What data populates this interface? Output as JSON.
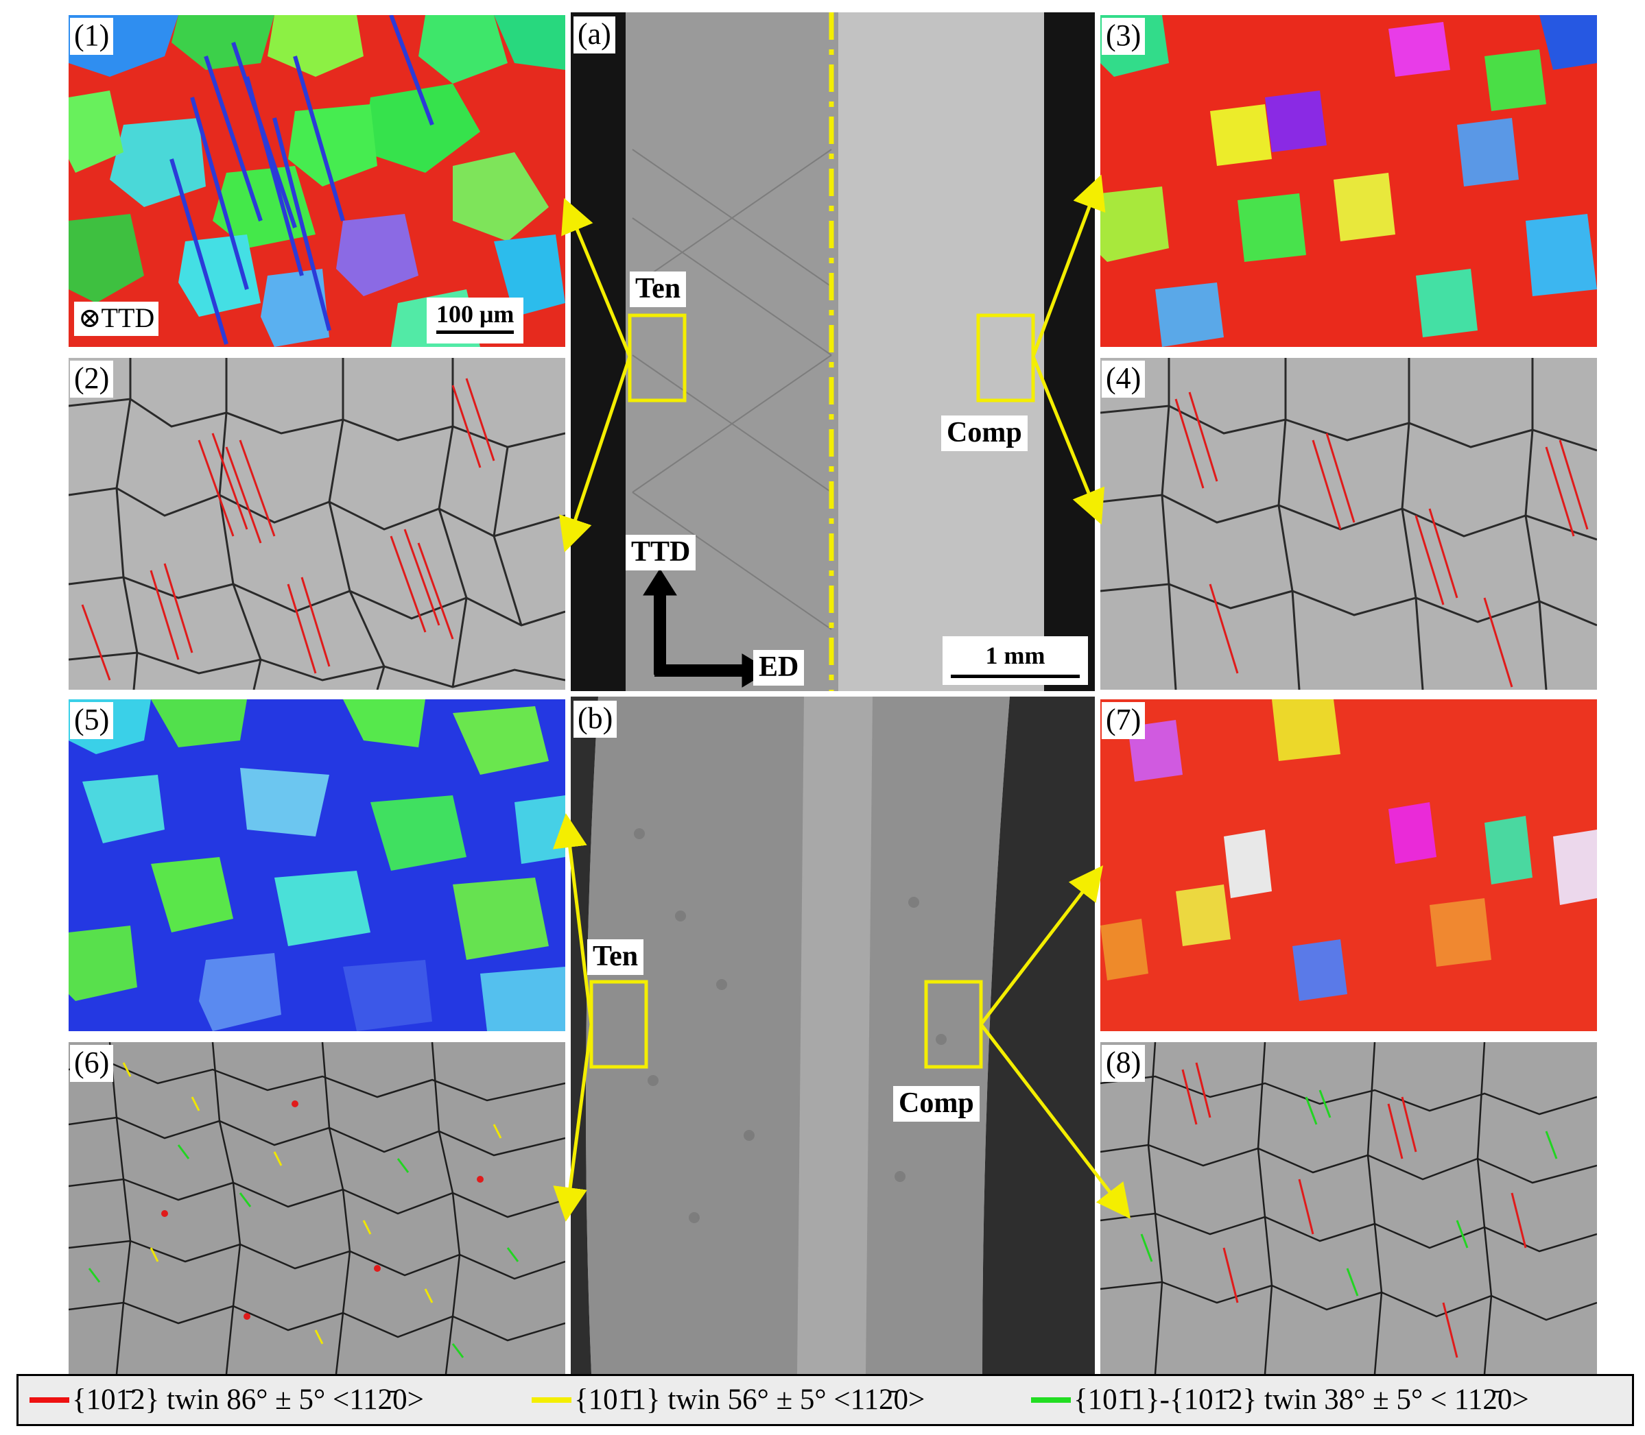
{
  "panels": {
    "p1": "(1)",
    "p2": "(2)",
    "p3": "(3)",
    "p4": "(4)",
    "p5": "(5)",
    "p6": "(6)",
    "p7": "(7)",
    "p8": "(8)",
    "pa": "(a)",
    "pb": "(b)"
  },
  "annotations": {
    "ttd_marker": "TTD",
    "scale_100": "100 μm",
    "scale_1mm": "1 mm",
    "ten_top": "Ten",
    "comp_top": "Comp",
    "ten_bottom": "Ten",
    "comp_bottom": "Comp",
    "axis_ttd": "TTD",
    "axis_ed": "ED"
  },
  "colors": {
    "twin_1012": "#ee1111",
    "twin_1011": "#f4ee00",
    "twin_double": "#22dd22",
    "callout": "#f4ee00"
  },
  "legend": {
    "item1": "{101̄2} twin 86° ± 5° <112̄0>",
    "item2": "{101̄1} twin 56° ± 5° <112̄0>",
    "item3": "{101̄1}-{101̄2} twin 38° ± 5° < 112̄0>"
  }
}
